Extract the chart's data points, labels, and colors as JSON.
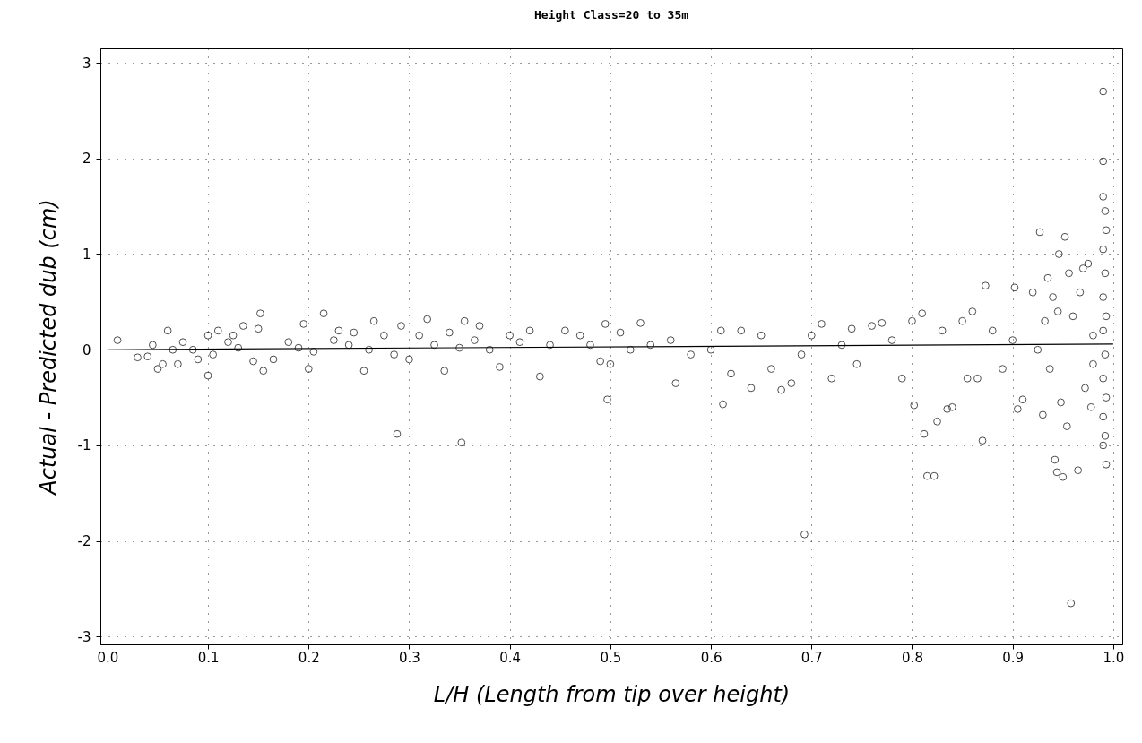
{
  "chart_data": {
    "type": "scatter",
    "title": "Height Class=20 to 35m",
    "xlabel": "L/H (Length from tip over height)",
    "ylabel": "Actual - Predicted dub (cm)",
    "xlim": [
      -0.007,
      1.009
    ],
    "ylim": [
      -3.08,
      3.15
    ],
    "xticks": [
      {
        "value": 0,
        "label": "0.0"
      },
      {
        "value": 0.1,
        "label": "0.1"
      },
      {
        "value": 0.2,
        "label": "0.2"
      },
      {
        "value": 0.3,
        "label": "0.3"
      },
      {
        "value": 0.4,
        "label": "0.4"
      },
      {
        "value": 0.5,
        "label": "0.5"
      },
      {
        "value": 0.6,
        "label": "0.6"
      },
      {
        "value": 0.7,
        "label": "0.7"
      },
      {
        "value": 0.8,
        "label": "0.8"
      },
      {
        "value": 0.9,
        "label": "0.9"
      },
      {
        "value": 1,
        "label": "1.0"
      }
    ],
    "yticks": [
      -3,
      -2,
      -1,
      0,
      1,
      2,
      3
    ],
    "grid": true,
    "marker": "circle",
    "series": [
      {
        "color": "#000000",
        "x": [
          0.01,
          0.03,
          0.04,
          0.045,
          0.05,
          0.055,
          0.06,
          0.065,
          0.07,
          0.075,
          0.085,
          0.09,
          0.1,
          0.1,
          0.105,
          0.11,
          0.12,
          0.125,
          0.13,
          0.135,
          0.145,
          0.15,
          0.152,
          0.155,
          0.165,
          0.18,
          0.19,
          0.195,
          0.2,
          0.205,
          0.215,
          0.225,
          0.23,
          0.24,
          0.245,
          0.255,
          0.26,
          0.265,
          0.275,
          0.285,
          0.288,
          0.292,
          0.3,
          0.31,
          0.318,
          0.325,
          0.335,
          0.34,
          0.35,
          0.352,
          0.355,
          0.365,
          0.37,
          0.38,
          0.39,
          0.4,
          0.41,
          0.42,
          0.43,
          0.44,
          0.455,
          0.47,
          0.48,
          0.49,
          0.495,
          0.497,
          0.5,
          0.51,
          0.52,
          0.53,
          0.54,
          0.56,
          0.565,
          0.58,
          0.6,
          0.61,
          0.612,
          0.62,
          0.63,
          0.64,
          0.65,
          0.66,
          0.67,
          0.68,
          0.69,
          0.693,
          0.7,
          0.71,
          0.72,
          0.73,
          0.74,
          0.745,
          0.76,
          0.77,
          0.78,
          0.79,
          0.8,
          0.802,
          0.81,
          0.812,
          0.815,
          0.822,
          0.825,
          0.83,
          0.835,
          0.84,
          0.85,
          0.855,
          0.86,
          0.865,
          0.87,
          0.873,
          0.88,
          0.89,
          0.9,
          0.902,
          0.905,
          0.91,
          0.92,
          0.925,
          0.927,
          0.93,
          0.932,
          0.935,
          0.937,
          0.94,
          0.942,
          0.944,
          0.945,
          0.946,
          0.948,
          0.95,
          0.952,
          0.954,
          0.956,
          0.958,
          0.96,
          0.965,
          0.967,
          0.97,
          0.972,
          0.975,
          0.978,
          0.98,
          0.98,
          0.99,
          0.99,
          0.99,
          0.992,
          0.993,
          0.99,
          0.992,
          0.99,
          0.993,
          0.99,
          0.992,
          0.99,
          0.993,
          0.99,
          0.992,
          0.993,
          0.99
        ],
        "values": [
          0.1,
          -0.08,
          -0.07,
          0.05,
          -0.2,
          -0.15,
          0.2,
          0.0,
          -0.15,
          0.08,
          0.0,
          -0.1,
          -0.27,
          0.15,
          -0.05,
          0.2,
          0.08,
          0.15,
          0.02,
          0.25,
          -0.12,
          0.22,
          0.38,
          -0.22,
          -0.1,
          0.08,
          0.02,
          0.27,
          -0.2,
          -0.02,
          0.38,
          0.1,
          0.2,
          0.05,
          0.18,
          -0.22,
          0.0,
          0.3,
          0.15,
          -0.05,
          -0.88,
          0.25,
          -0.1,
          0.15,
          0.32,
          0.05,
          -0.22,
          0.18,
          0.02,
          -0.97,
          0.3,
          0.1,
          0.25,
          0.0,
          -0.18,
          0.15,
          0.08,
          0.2,
          -0.28,
          0.05,
          0.2,
          0.15,
          0.05,
          -0.12,
          0.27,
          -0.52,
          -0.15,
          0.18,
          0.0,
          0.28,
          0.05,
          0.1,
          -0.35,
          -0.05,
          0.0,
          0.2,
          -0.57,
          -0.25,
          0.2,
          -0.4,
          0.15,
          -0.2,
          -0.42,
          -0.35,
          -0.05,
          -1.93,
          0.15,
          0.27,
          -0.3,
          0.05,
          0.22,
          -0.15,
          0.25,
          0.28,
          0.1,
          -0.3,
          0.3,
          -0.58,
          0.38,
          -0.88,
          -1.32,
          -1.32,
          -0.75,
          0.2,
          -0.62,
          -0.6,
          0.3,
          -0.3,
          0.4,
          -0.3,
          -0.95,
          0.67,
          0.2,
          -0.2,
          0.1,
          0.65,
          -0.62,
          -0.52,
          0.6,
          0.0,
          1.23,
          -0.68,
          0.3,
          0.75,
          -0.2,
          0.55,
          -1.15,
          -1.28,
          0.4,
          1.0,
          -0.55,
          -1.33,
          1.18,
          -0.8,
          0.8,
          -2.65,
          0.35,
          -1.26,
          0.6,
          0.85,
          -0.4,
          0.9,
          -0.6,
          0.15,
          -0.15,
          2.7,
          1.97,
          1.6,
          1.45,
          1.25,
          1.05,
          0.8,
          0.55,
          0.35,
          0.2,
          -0.05,
          -0.3,
          -0.5,
          -0.7,
          -0.9,
          -1.2,
          -1.0
        ]
      },
      {
        "type": "line",
        "marker": "none",
        "color": "#000000",
        "x": [
          0,
          1
        ],
        "values": [
          0,
          0.06
        ]
      }
    ]
  }
}
